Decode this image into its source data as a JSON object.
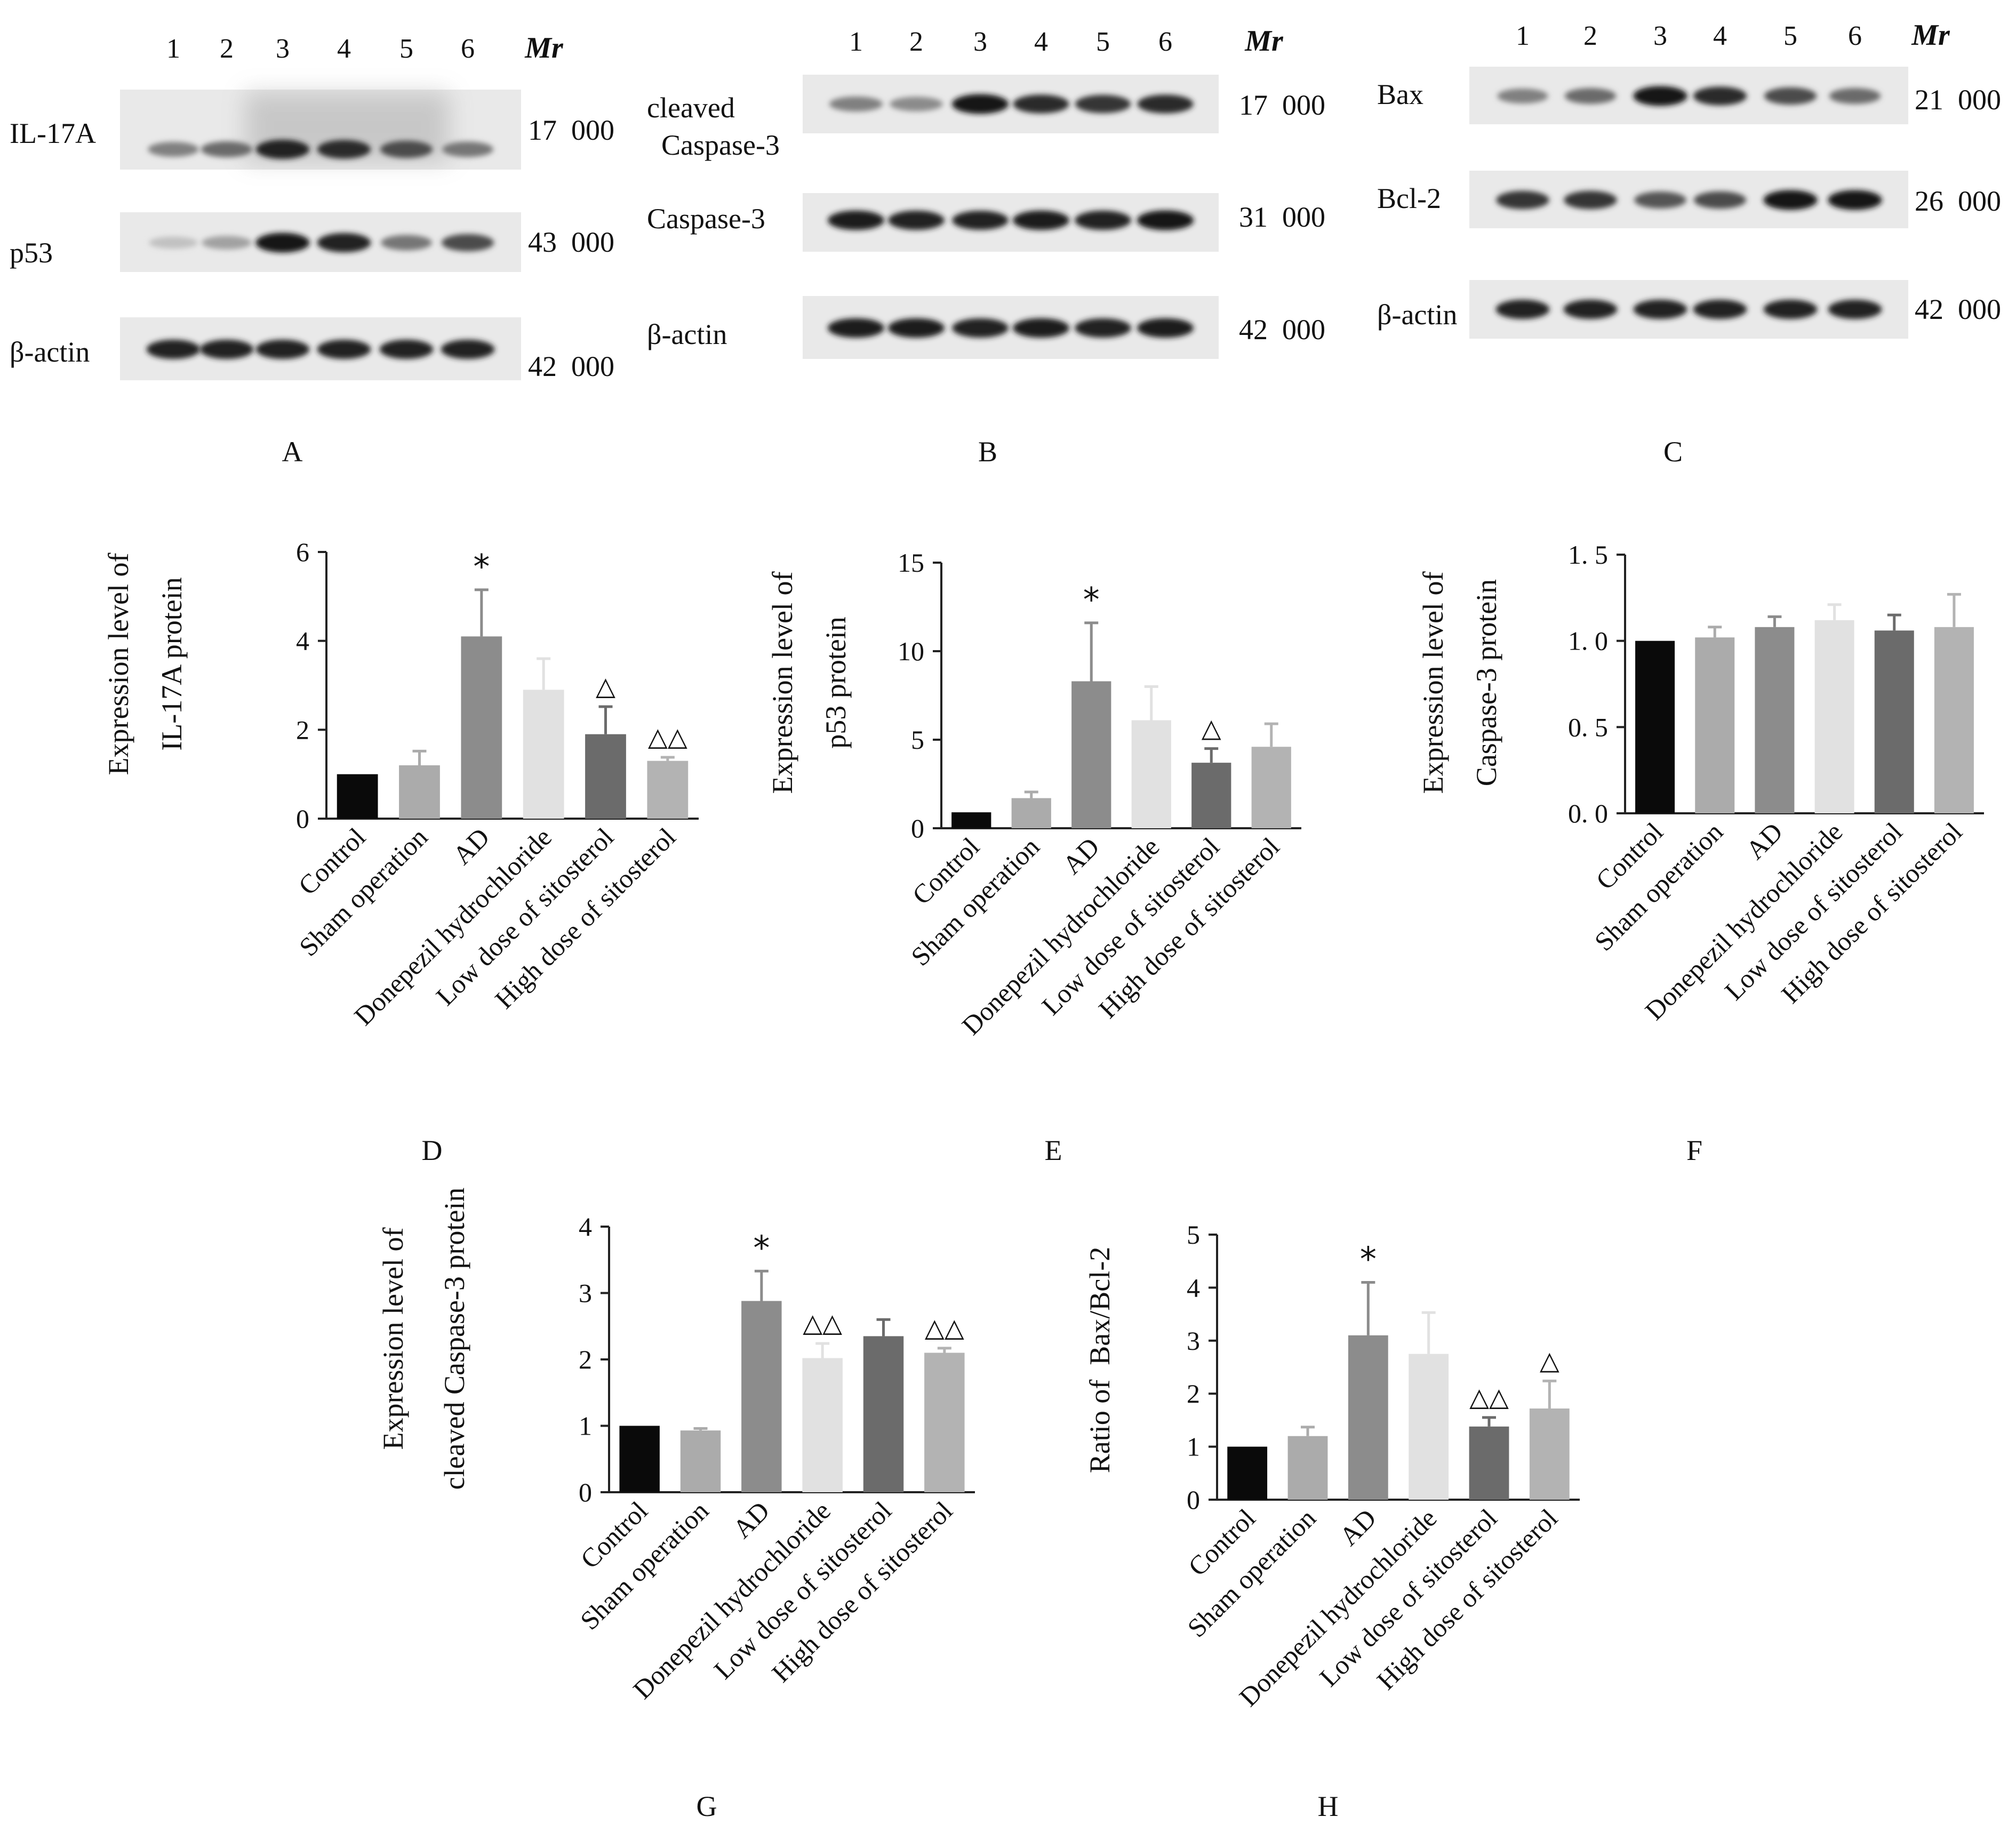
{
  "blots": [
    {
      "panel": "A",
      "lanes": [
        "1",
        "2",
        "3",
        "4",
        "5",
        "6"
      ],
      "mr_header": "Mr",
      "rows": [
        {
          "label": "IL-17A",
          "mr": "17  000",
          "intensity": [
            0.45,
            0.55,
            0.9,
            0.85,
            0.7,
            0.5
          ],
          "haze": true
        },
        {
          "label": "p53",
          "mr": "43  000",
          "intensity": [
            0.15,
            0.3,
            0.95,
            0.9,
            0.5,
            0.7
          ]
        },
        {
          "label": "β-actin",
          "mr": "42  000",
          "intensity": [
            0.9,
            0.9,
            0.9,
            0.9,
            0.9,
            0.9
          ]
        }
      ]
    },
    {
      "panel": "B",
      "lanes": [
        "1",
        "2",
        "3",
        "4",
        "5",
        "6"
      ],
      "mr_header": "Mr",
      "rows": [
        {
          "label": "cleaved",
          "label2": "Caspase-3",
          "mr": "17  000",
          "intensity": [
            0.45,
            0.4,
            0.95,
            0.85,
            0.8,
            0.85
          ]
        },
        {
          "label": "Caspase-3",
          "mr": "31  000",
          "intensity": [
            0.92,
            0.9,
            0.88,
            0.92,
            0.9,
            0.95
          ]
        },
        {
          "label": "β-actin",
          "mr": "42  000",
          "intensity": [
            0.92,
            0.92,
            0.9,
            0.92,
            0.9,
            0.92
          ]
        }
      ]
    },
    {
      "panel": "C",
      "lanes": [
        "1",
        "2",
        "3",
        "4",
        "5",
        "6"
      ],
      "mr_header": "Mr",
      "rows": [
        {
          "label": "Bax",
          "mr": "21  000",
          "intensity": [
            0.45,
            0.55,
            0.95,
            0.85,
            0.7,
            0.55
          ]
        },
        {
          "label": "Bcl-2",
          "mr": "26  000",
          "intensity": [
            0.8,
            0.8,
            0.65,
            0.7,
            0.95,
            0.95
          ]
        },
        {
          "label": "β-actin",
          "mr": "42  000",
          "intensity": [
            0.9,
            0.9,
            0.9,
            0.9,
            0.9,
            0.9
          ]
        }
      ]
    }
  ],
  "chart_data": [
    {
      "panel": "D",
      "type": "bar",
      "ylabel_lines": [
        "Expression level of",
        "IL-17A protein"
      ],
      "categories": [
        "Control",
        "Sham operation",
        "AD",
        "Donepezil hydrochloride",
        "Low dose of sitosterol",
        "High dose of sitosterol"
      ],
      "values": [
        1.0,
        1.2,
        4.1,
        2.9,
        1.9,
        1.3
      ],
      "errors": [
        0,
        0.32,
        1.05,
        0.7,
        0.62,
        0.08
      ],
      "annotations": [
        "",
        "",
        "*",
        "",
        "△",
        "△△"
      ],
      "yticks": [
        "0",
        "2",
        "4",
        "6"
      ],
      "ylim": [
        0,
        6
      ],
      "colors": [
        "#0a0a0a",
        "#ababab",
        "#8c8c8c",
        "#e1e1e1",
        "#6b6b6b",
        "#b3b3b3"
      ]
    },
    {
      "panel": "E",
      "type": "bar",
      "ylabel_lines": [
        "Expression level of",
        "p53 protein"
      ],
      "categories": [
        "Control",
        "Sham operation",
        "AD",
        "Donepezil hydrochloride",
        "Low dose of sitosterol",
        "High dose of sitosterol"
      ],
      "values": [
        0.9,
        1.7,
        8.3,
        6.1,
        3.7,
        4.6
      ],
      "errors": [
        0,
        0.35,
        3.3,
        1.9,
        0.8,
        1.3
      ],
      "annotations": [
        "",
        "",
        "*",
        "",
        "△",
        ""
      ],
      "yticks": [
        "0",
        "5",
        "10",
        "15"
      ],
      "ylim": [
        0,
        15
      ],
      "colors": [
        "#0a0a0a",
        "#ababab",
        "#8c8c8c",
        "#e1e1e1",
        "#6b6b6b",
        "#b3b3b3"
      ]
    },
    {
      "panel": "F",
      "type": "bar",
      "ylabel_lines": [
        "Expression level of",
        "Caspase-3 protein"
      ],
      "categories": [
        "Control",
        "Sham operation",
        "AD",
        "Donepezil hydrochloride",
        "Low dose of sitosterol",
        "High dose of sitosterol"
      ],
      "values": [
        1.0,
        1.02,
        1.08,
        1.12,
        1.06,
        1.08
      ],
      "errors": [
        0,
        0.06,
        0.06,
        0.09,
        0.09,
        0.19
      ],
      "annotations": [
        "",
        "",
        "",
        "",
        "",
        ""
      ],
      "yticks": [
        "0. 0",
        "0. 5",
        "1. 0",
        "1. 5"
      ],
      "ylim": [
        0,
        1.5
      ],
      "colors": [
        "#0a0a0a",
        "#ababab",
        "#8c8c8c",
        "#e1e1e1",
        "#6b6b6b",
        "#b3b3b3"
      ]
    },
    {
      "panel": "G",
      "type": "bar",
      "ylabel_lines": [
        "Expression level of",
        "cleaved Caspase-3 protein"
      ],
      "categories": [
        "Control",
        "Sham operation",
        "AD",
        "Donepezil hydrochloride",
        "Low dose of sitosterol",
        "High dose of sitosterol"
      ],
      "values": [
        1.0,
        0.93,
        2.88,
        2.02,
        2.35,
        2.1
      ],
      "errors": [
        0,
        0.03,
        0.45,
        0.22,
        0.25,
        0.07
      ],
      "annotations": [
        "",
        "",
        "*",
        "△△",
        "",
        "△△"
      ],
      "yticks": [
        "0",
        "1",
        "2",
        "3",
        "4"
      ],
      "ylim": [
        0,
        4
      ],
      "colors": [
        "#0a0a0a",
        "#ababab",
        "#8c8c8c",
        "#e1e1e1",
        "#6b6b6b",
        "#b3b3b3"
      ]
    },
    {
      "panel": "H",
      "type": "bar",
      "ylabel_lines": [
        "Ratio of  Bax/Bcl-2"
      ],
      "categories": [
        "Control",
        "Sham operation",
        "AD",
        "Donepezil hydrochloride",
        "Low dose of sitosterol",
        "High dose of sitosterol"
      ],
      "values": [
        1.0,
        1.2,
        3.1,
        2.75,
        1.38,
        1.72
      ],
      "errors": [
        0,
        0.17,
        1.0,
        0.78,
        0.17,
        0.52
      ],
      "annotations": [
        "",
        "",
        "*",
        "",
        "△△",
        "△"
      ],
      "yticks": [
        "0",
        "1",
        "2",
        "3",
        "4",
        "5"
      ],
      "ylim": [
        0,
        5
      ],
      "colors": [
        "#0a0a0a",
        "#ababab",
        "#8c8c8c",
        "#e1e1e1",
        "#6b6b6b",
        "#b3b3b3"
      ]
    }
  ]
}
